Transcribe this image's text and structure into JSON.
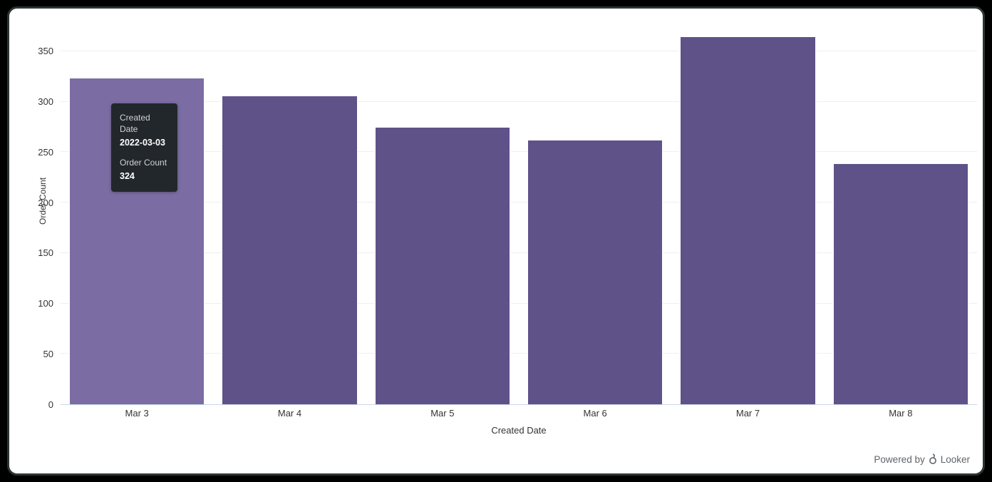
{
  "chart_data": {
    "type": "bar",
    "title": "",
    "categories": [
      "Mar 3",
      "Mar 4",
      "Mar 5",
      "Mar 6",
      "Mar 7",
      "Mar 8"
    ],
    "values": [
      324,
      306,
      275,
      262,
      365,
      239
    ],
    "xlabel": "Created Date",
    "ylabel": "Order Count",
    "ylim": [
      0,
      388
    ],
    "yticks": [
      0,
      50,
      100,
      150,
      200,
      250,
      300,
      350
    ],
    "grid": true,
    "legend": "none",
    "hovered_index": 0,
    "colors": {
      "bar": "#5f5289",
      "bar_hover": "#7b6da3",
      "gridline": "#efefef",
      "axis_line": "#ccd6eb",
      "tick_text": "#333333",
      "tooltip_bg": "#22272b"
    }
  },
  "tooltip": {
    "field1_label": "Created Date",
    "field1_value": "2022-03-03",
    "field2_label": "Order Count",
    "field2_value": "324"
  },
  "footer": {
    "powered_by": "Powered by",
    "brand": "Looker",
    "icon": "looker-logo-icon"
  }
}
